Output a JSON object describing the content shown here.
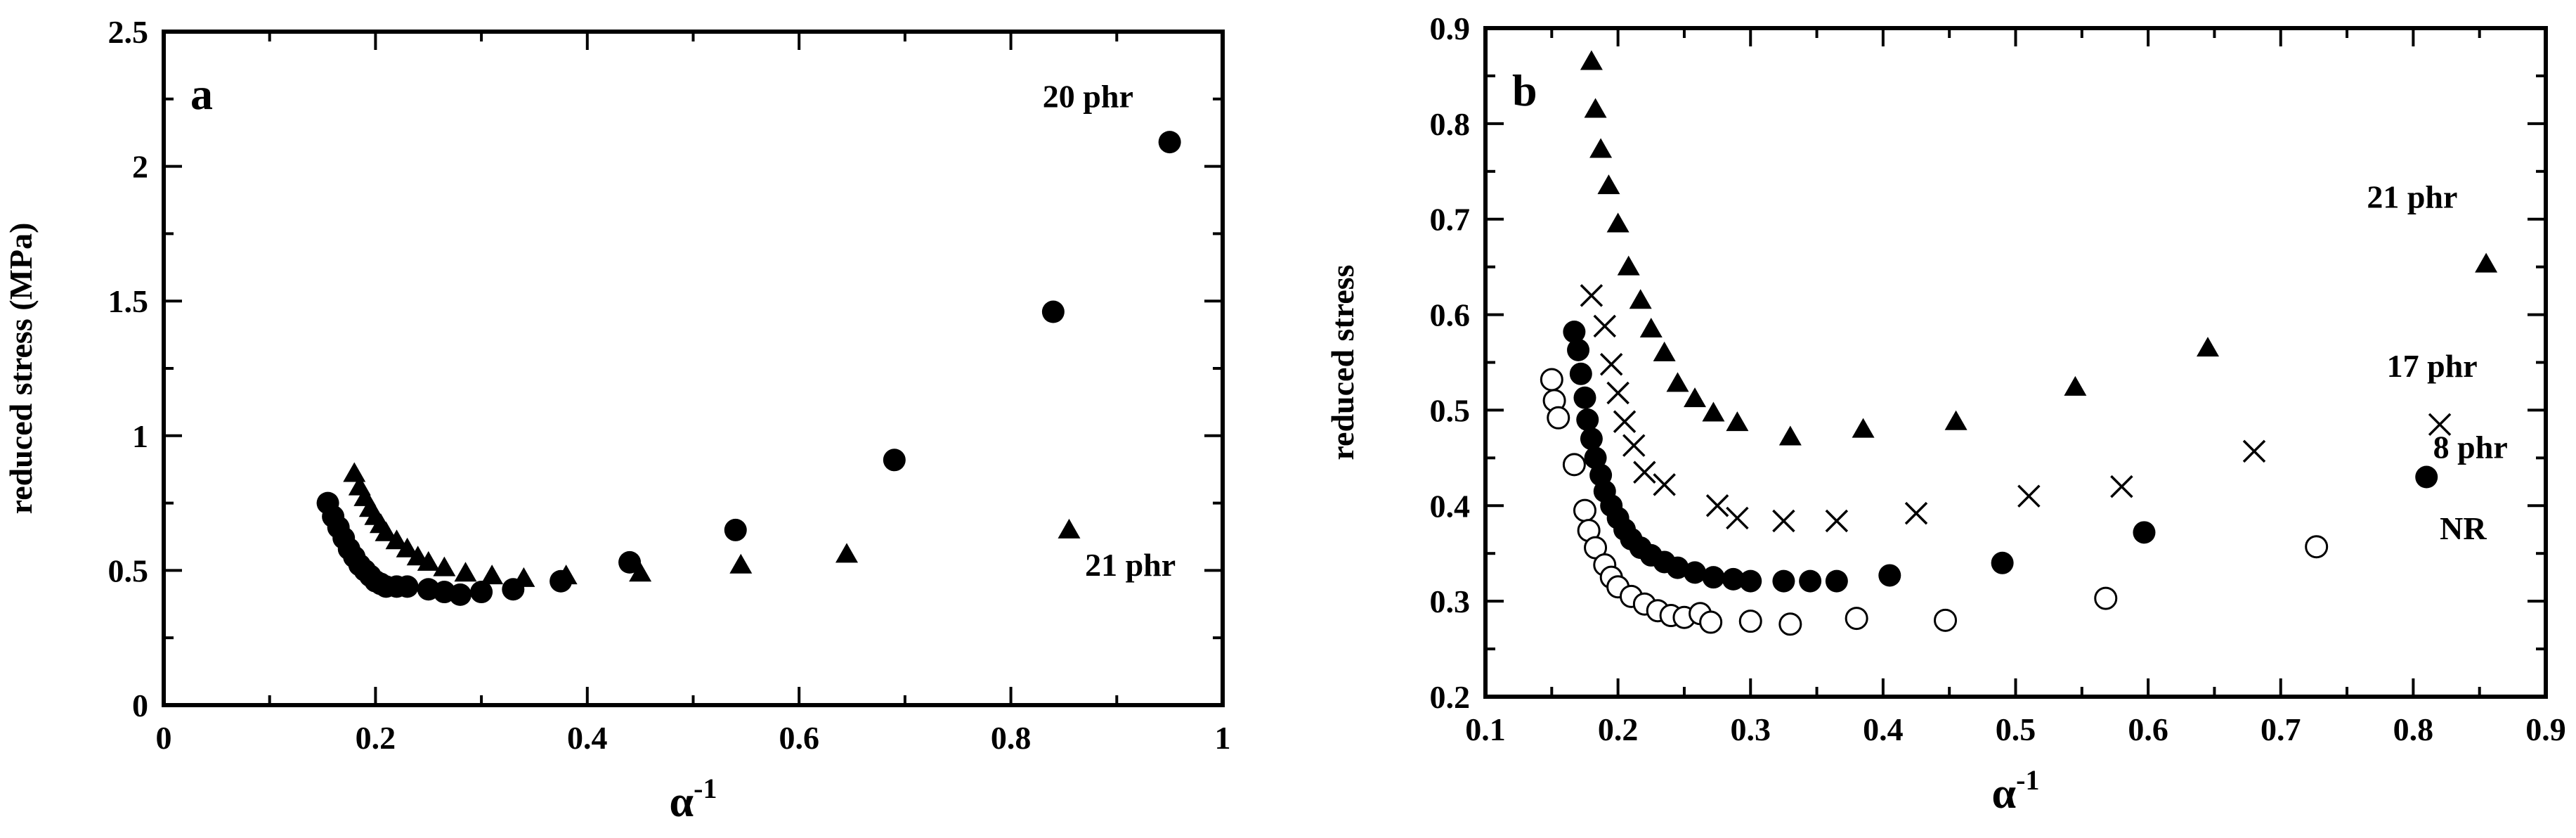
{
  "chart_data": [
    {
      "type": "scatter",
      "panel": "a",
      "xlabel": "α",
      "xlabel_sup": "-1",
      "ylabel": "reduced stress (MPa)",
      "xlim": [
        0,
        1
      ],
      "ylim": [
        0,
        2.5
      ],
      "xticks": [
        0,
        0.2,
        0.4,
        0.6,
        0.8,
        1
      ],
      "xtick_labels": [
        "0",
        "0.2",
        "0.4",
        "0.6",
        "0.8",
        "1"
      ],
      "yticks": [
        0,
        0.5,
        1,
        1.5,
        2,
        2.5
      ],
      "ytick_labels": [
        "0",
        "0.5",
        "1",
        "1.5",
        "2",
        "2.5"
      ],
      "series": [
        {
          "name": "20 phr",
          "marker": "filled-circle",
          "label_at": [
            0.83,
            2.22
          ],
          "points": [
            [
              0.155,
              0.75
            ],
            [
              0.16,
              0.7
            ],
            [
              0.165,
              0.66
            ],
            [
              0.17,
              0.62
            ],
            [
              0.175,
              0.58
            ],
            [
              0.18,
              0.55
            ],
            [
              0.185,
              0.52
            ],
            [
              0.19,
              0.5
            ],
            [
              0.195,
              0.48
            ],
            [
              0.2,
              0.46
            ],
            [
              0.205,
              0.45
            ],
            [
              0.21,
              0.44
            ],
            [
              0.22,
              0.44
            ],
            [
              0.23,
              0.44
            ],
            [
              0.25,
              0.43
            ],
            [
              0.265,
              0.42
            ],
            [
              0.28,
              0.41
            ],
            [
              0.3,
              0.42
            ],
            [
              0.33,
              0.43
            ],
            [
              0.375,
              0.46
            ],
            [
              0.44,
              0.53
            ],
            [
              0.54,
              0.65
            ],
            [
              0.69,
              0.91
            ],
            [
              0.84,
              1.46
            ],
            [
              0.95,
              2.09
            ]
          ]
        },
        {
          "name": "21 phr",
          "marker": "filled-triangle",
          "label_at": [
            0.87,
            0.48
          ],
          "points": [
            [
              0.18,
              0.86
            ],
            [
              0.185,
              0.81
            ],
            [
              0.19,
              0.77
            ],
            [
              0.195,
              0.73
            ],
            [
              0.2,
              0.7
            ],
            [
              0.205,
              0.67
            ],
            [
              0.21,
              0.64
            ],
            [
              0.22,
              0.61
            ],
            [
              0.23,
              0.58
            ],
            [
              0.24,
              0.55
            ],
            [
              0.25,
              0.53
            ],
            [
              0.265,
              0.51
            ],
            [
              0.285,
              0.49
            ],
            [
              0.31,
              0.48
            ],
            [
              0.34,
              0.47
            ],
            [
              0.38,
              0.48
            ],
            [
              0.45,
              0.49
            ],
            [
              0.545,
              0.52
            ],
            [
              0.645,
              0.56
            ],
            [
              0.855,
              0.65
            ]
          ]
        }
      ]
    },
    {
      "type": "scatter",
      "panel": "b",
      "xlabel": "α",
      "xlabel_sup": "-1",
      "ylabel": "reduced stress",
      "xlim": [
        0.1,
        0.9
      ],
      "ylim": [
        0.2,
        0.9
      ],
      "xticks": [
        0.1,
        0.2,
        0.3,
        0.4,
        0.5,
        0.6,
        0.7,
        0.8,
        0.9
      ],
      "xtick_labels": [
        "0.1",
        "0.2",
        "0.3",
        "0.4",
        "0.5",
        "0.6",
        "0.7",
        "0.8",
        "0.9"
      ],
      "yticks": [
        0.2,
        0.3,
        0.4,
        0.5,
        0.6,
        0.7,
        0.8,
        0.9
      ],
      "ytick_labels": [
        "0.2",
        "0.3",
        "0.4",
        "0.5",
        "0.6",
        "0.7",
        "0.8",
        "0.9"
      ],
      "series": [
        {
          "name": "21 phr",
          "marker": "filled-triangle",
          "label_at": [
            0.765,
            0.712
          ],
          "points": [
            [
              0.18,
              0.865
            ],
            [
              0.183,
              0.815
            ],
            [
              0.187,
              0.773
            ],
            [
              0.193,
              0.735
            ],
            [
              0.2,
              0.695
            ],
            [
              0.208,
              0.65
            ],
            [
              0.217,
              0.615
            ],
            [
              0.225,
              0.585
            ],
            [
              0.235,
              0.56
            ],
            [
              0.245,
              0.528
            ],
            [
              0.258,
              0.512
            ],
            [
              0.272,
              0.497
            ],
            [
              0.29,
              0.487
            ],
            [
              0.33,
              0.472
            ],
            [
              0.385,
              0.48
            ],
            [
              0.455,
              0.488
            ],
            [
              0.545,
              0.524
            ],
            [
              0.645,
              0.565
            ],
            [
              0.855,
              0.653
            ]
          ]
        },
        {
          "name": "17 phr",
          "marker": "cross",
          "label_at": [
            0.78,
            0.535
          ],
          "points": [
            [
              0.18,
              0.62
            ],
            [
              0.19,
              0.588
            ],
            [
              0.195,
              0.548
            ],
            [
              0.2,
              0.518
            ],
            [
              0.205,
              0.488
            ],
            [
              0.212,
              0.463
            ],
            [
              0.22,
              0.435
            ],
            [
              0.235,
              0.422
            ],
            [
              0.275,
              0.4
            ],
            [
              0.29,
              0.387
            ],
            [
              0.325,
              0.384
            ],
            [
              0.365,
              0.384
            ],
            [
              0.425,
              0.392
            ],
            [
              0.51,
              0.41
            ],
            [
              0.58,
              0.42
            ],
            [
              0.68,
              0.457
            ],
            [
              0.82,
              0.485
            ]
          ]
        },
        {
          "name": "8 phr",
          "marker": "filled-circle",
          "label_at": [
            0.815,
            0.45
          ],
          "points": [
            [
              0.167,
              0.582
            ],
            [
              0.17,
              0.563
            ],
            [
              0.172,
              0.538
            ],
            [
              0.175,
              0.513
            ],
            [
              0.177,
              0.49
            ],
            [
              0.18,
              0.47
            ],
            [
              0.183,
              0.45
            ],
            [
              0.187,
              0.432
            ],
            [
              0.19,
              0.415
            ],
            [
              0.195,
              0.4
            ],
            [
              0.2,
              0.387
            ],
            [
              0.205,
              0.375
            ],
            [
              0.21,
              0.365
            ],
            [
              0.217,
              0.356
            ],
            [
              0.225,
              0.348
            ],
            [
              0.235,
              0.341
            ],
            [
              0.245,
              0.335
            ],
            [
              0.258,
              0.33
            ],
            [
              0.272,
              0.325
            ],
            [
              0.287,
              0.323
            ],
            [
              0.3,
              0.321
            ],
            [
              0.325,
              0.321
            ],
            [
              0.345,
              0.321
            ],
            [
              0.365,
              0.321
            ],
            [
              0.405,
              0.327
            ],
            [
              0.49,
              0.34
            ],
            [
              0.597,
              0.372
            ],
            [
              0.81,
              0.43
            ]
          ]
        },
        {
          "name": "NR",
          "marker": "open-circle",
          "label_at": [
            0.82,
            0.365
          ],
          "points": [
            [
              0.15,
              0.532
            ],
            [
              0.152,
              0.51
            ],
            [
              0.155,
              0.492
            ],
            [
              0.167,
              0.443
            ],
            [
              0.175,
              0.395
            ],
            [
              0.178,
              0.374
            ],
            [
              0.183,
              0.356
            ],
            [
              0.19,
              0.338
            ],
            [
              0.195,
              0.325
            ],
            [
              0.2,
              0.315
            ],
            [
              0.21,
              0.305
            ],
            [
              0.22,
              0.297
            ],
            [
              0.23,
              0.29
            ],
            [
              0.24,
              0.285
            ],
            [
              0.25,
              0.283
            ],
            [
              0.262,
              0.287
            ],
            [
              0.27,
              0.278
            ],
            [
              0.3,
              0.279
            ],
            [
              0.33,
              0.276
            ],
            [
              0.38,
              0.282
            ],
            [
              0.447,
              0.28
            ],
            [
              0.568,
              0.303
            ],
            [
              0.727,
              0.357
            ]
          ]
        }
      ]
    }
  ]
}
